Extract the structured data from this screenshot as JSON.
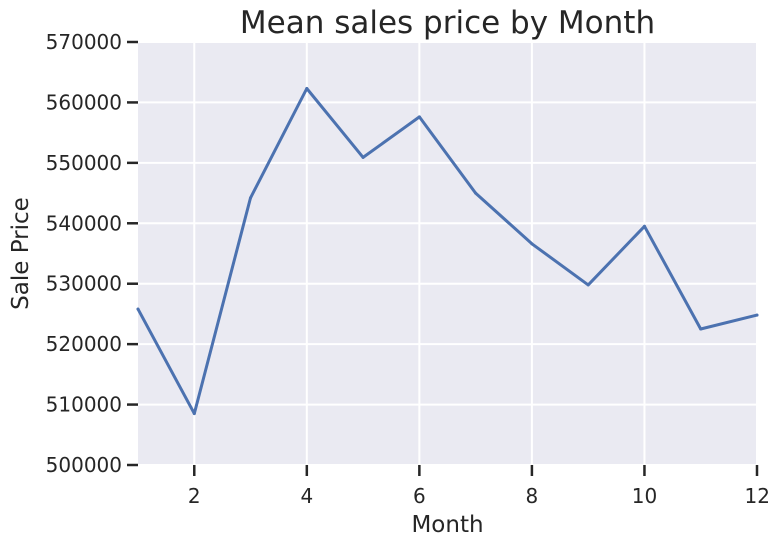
{
  "chart_data": {
    "type": "line",
    "title": "Mean sales price by Month",
    "xlabel": "Month",
    "ylabel": "Sale Price",
    "xlim": [
      1,
      12
    ],
    "ylim": [
      500000,
      570000
    ],
    "x_ticks": [
      2,
      4,
      6,
      8,
      10,
      12
    ],
    "y_ticks": [
      500000,
      510000,
      520000,
      530000,
      540000,
      550000,
      560000,
      570000
    ],
    "grid": true,
    "series": [
      {
        "color": "#4c72b0",
        "x": [
          1,
          2,
          3,
          4,
          5,
          6,
          7,
          8,
          9,
          10,
          11,
          12
        ],
        "values": [
          525800,
          508500,
          544200,
          562300,
          550900,
          557600,
          545000,
          536600,
          529800,
          539500,
          522500,
          524800
        ]
      }
    ],
    "colors": {
      "plot_background": "#eaeaf2",
      "grid": "#ffffff",
      "text": "#262626"
    }
  }
}
